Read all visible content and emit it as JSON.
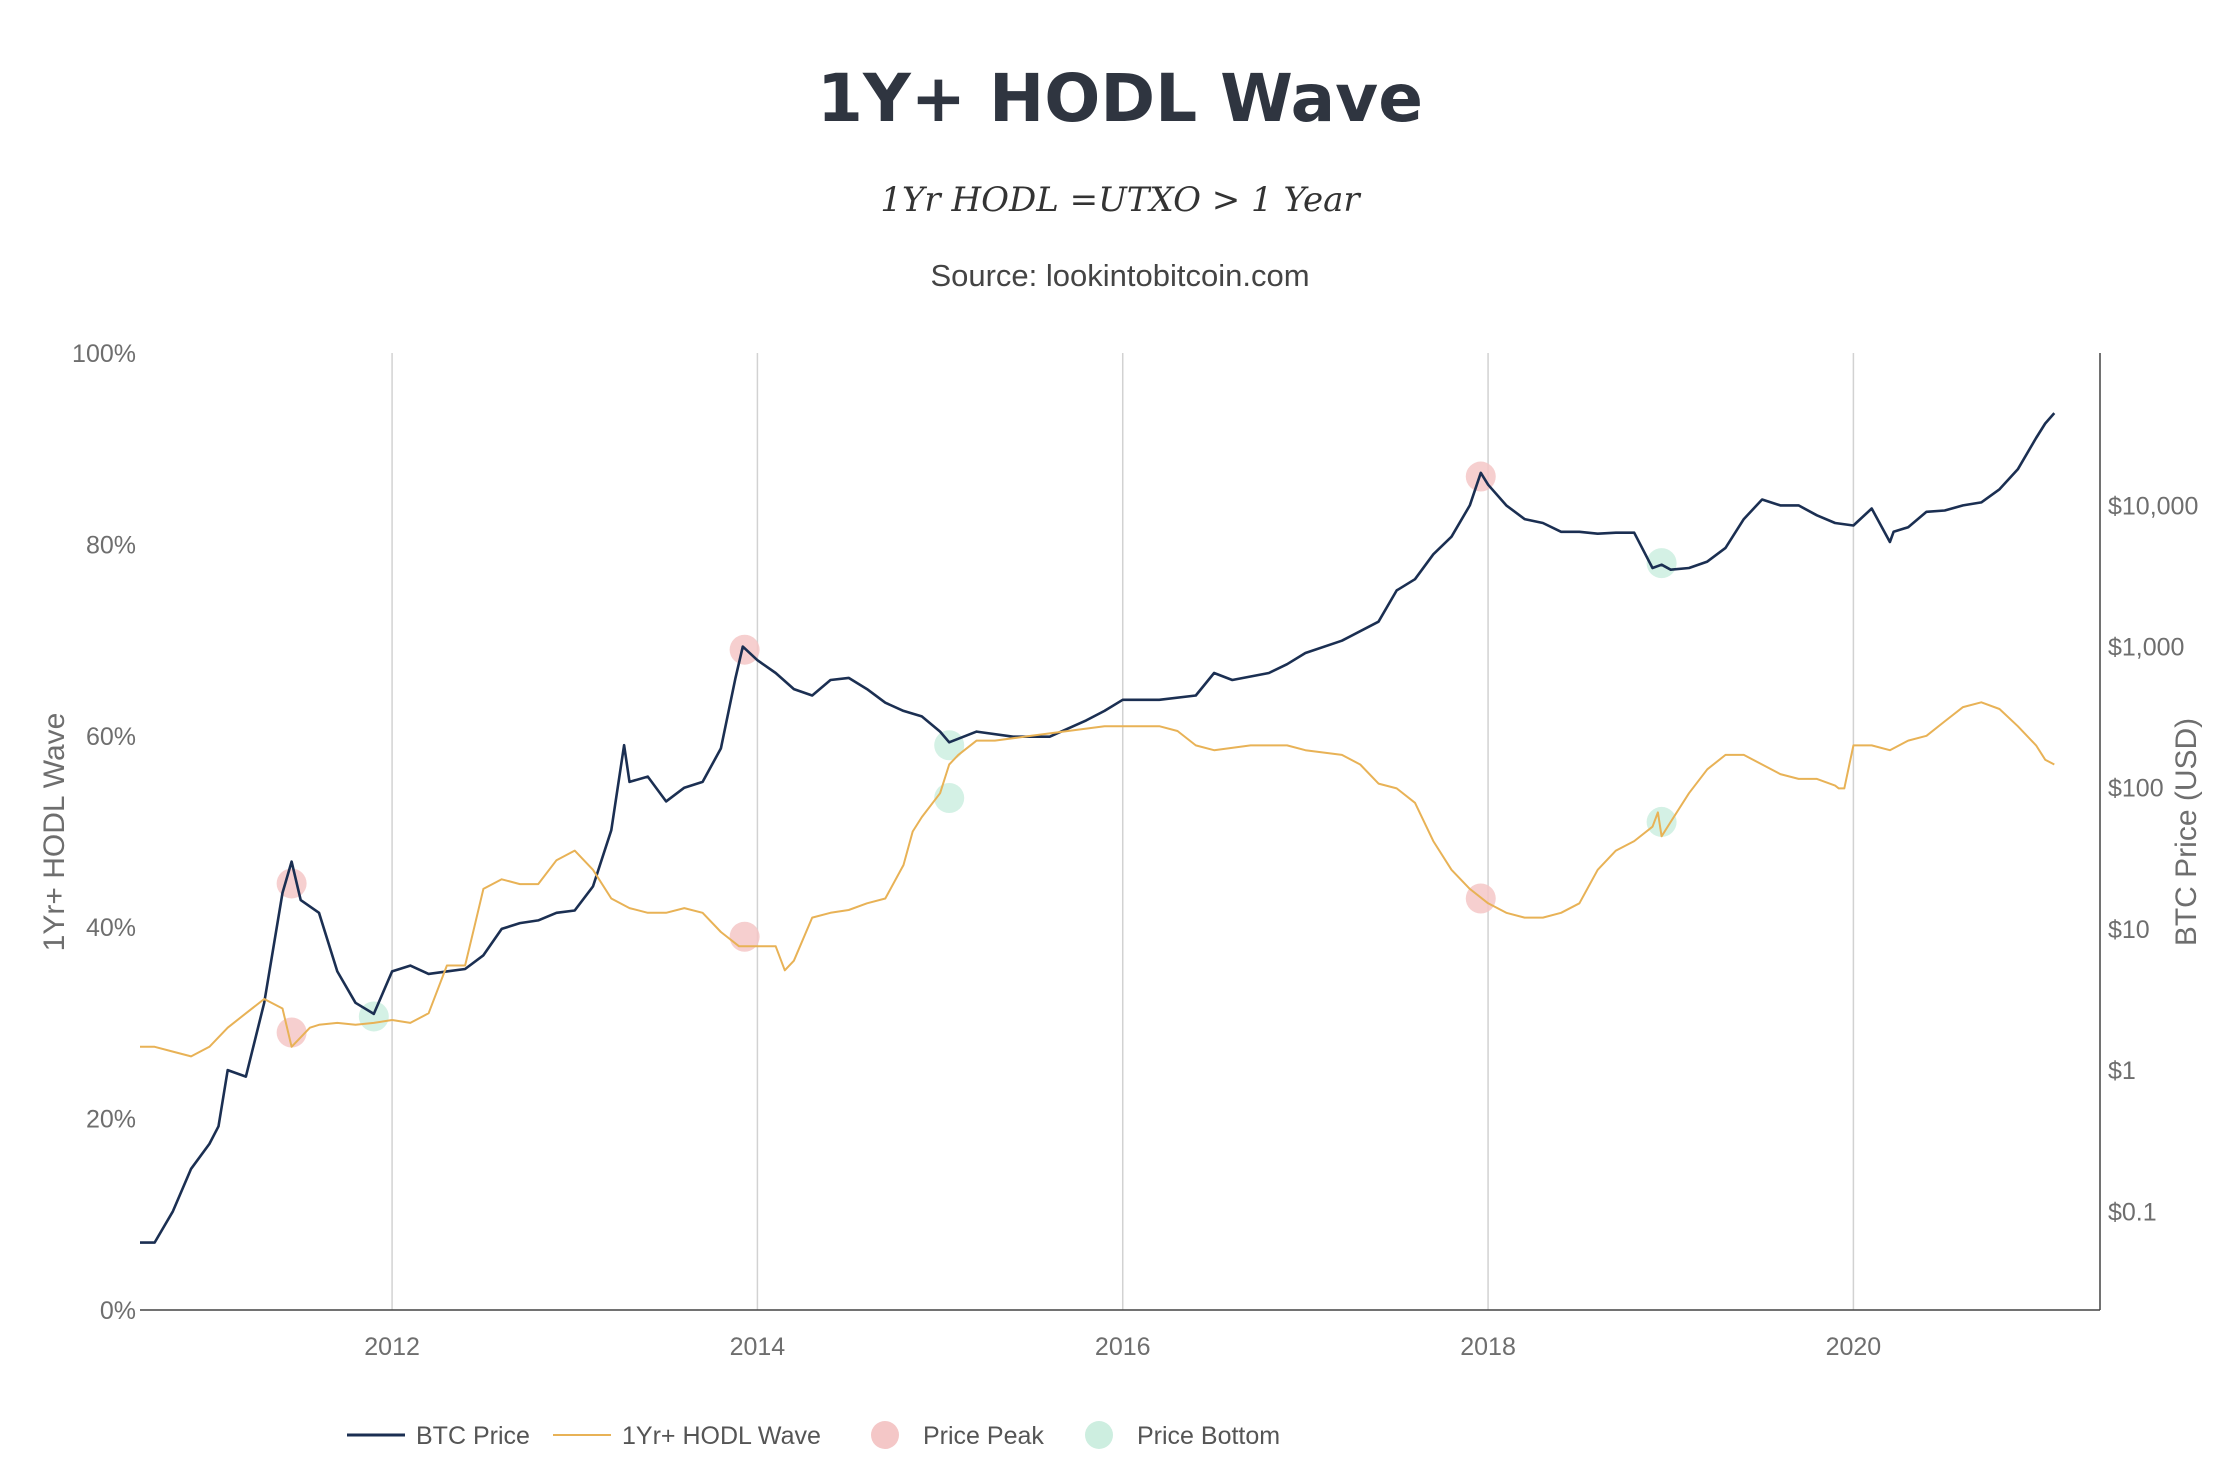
{
  "chart_data": {
    "type": "line",
    "title": "1Y+ HODL Wave",
    "subtitle": "1Yr HODL =UTXO > 1 Year",
    "source": "Source: lookintobitcoin.com",
    "x_ticks": [
      2012,
      2014,
      2016,
      2018,
      2020
    ],
    "x_tick_labels": [
      "2012",
      "2014",
      "2016",
      "2018",
      "2020"
    ],
    "xlim": [
      2010.62,
      2021.35
    ],
    "y_left": {
      "label": "1Yr+ HODL Wave",
      "ticks": [
        0,
        20,
        40,
        60,
        80,
        100
      ],
      "tick_labels": [
        "0%",
        "20%",
        "40%",
        "60%",
        "80%",
        "100%"
      ],
      "range": [
        0,
        100
      ]
    },
    "y_right": {
      "label": "BTC Price (USD)",
      "scale": "log",
      "ticks": [
        0.1,
        1,
        10,
        100,
        1000,
        10000
      ],
      "tick_labels": [
        "$0.1",
        "$1",
        "$10",
        "$100",
        "$1,000",
        "$10,000"
      ],
      "range": [
        0.02,
        120000
      ]
    },
    "series": [
      {
        "name": "BTC Price",
        "axis": "right",
        "color": "#1b2f52",
        "x": [
          2010.62,
          2010.7,
          2010.8,
          2010.9,
          2011.0,
          2011.05,
          2011.1,
          2011.2,
          2011.3,
          2011.4,
          2011.45,
          2011.5,
          2011.6,
          2011.7,
          2011.8,
          2011.9,
          2012.0,
          2012.1,
          2012.2,
          2012.3,
          2012.4,
          2012.5,
          2012.6,
          2012.7,
          2012.8,
          2012.9,
          2013.0,
          2013.1,
          2013.2,
          2013.27,
          2013.3,
          2013.4,
          2013.5,
          2013.6,
          2013.7,
          2013.8,
          2013.88,
          2013.92,
          2014.0,
          2014.1,
          2014.2,
          2014.3,
          2014.4,
          2014.5,
          2014.6,
          2014.7,
          2014.8,
          2014.9,
          2015.0,
          2015.05,
          2015.2,
          2015.4,
          2015.6,
          2015.8,
          2015.9,
          2016.0,
          2016.2,
          2016.4,
          2016.5,
          2016.6,
          2016.8,
          2016.9,
          2017.0,
          2017.2,
          2017.4,
          2017.5,
          2017.6,
          2017.7,
          2017.8,
          2017.9,
          2017.96,
          2018.0,
          2018.1,
          2018.2,
          2018.3,
          2018.4,
          2018.5,
          2018.6,
          2018.7,
          2018.8,
          2018.9,
          2018.95,
          2019.0,
          2019.1,
          2019.2,
          2019.3,
          2019.4,
          2019.5,
          2019.6,
          2019.7,
          2019.8,
          2019.9,
          2020.0,
          2020.1,
          2020.2,
          2020.22,
          2020.3,
          2020.4,
          2020.5,
          2020.6,
          2020.7,
          2020.8,
          2020.9,
          2021.0,
          2021.05,
          2021.1
        ],
        "values": [
          0.06,
          0.06,
          0.1,
          0.2,
          0.3,
          0.4,
          1.0,
          0.9,
          3.0,
          18.0,
          30.0,
          16.0,
          13.0,
          5.0,
          3.0,
          2.5,
          5.0,
          5.5,
          4.8,
          5.0,
          5.2,
          6.5,
          10.0,
          11.0,
          11.5,
          13.0,
          13.5,
          20.0,
          50.0,
          200.0,
          110.0,
          120.0,
          80.0,
          100.0,
          110.0,
          190.0,
          600.0,
          1000.0,
          800.0,
          650.0,
          500.0,
          450.0,
          580.0,
          600.0,
          500.0,
          400.0,
          350.0,
          320.0,
          250.0,
          210.0,
          250.0,
          230.0,
          230.0,
          300.0,
          350.0,
          420.0,
          420.0,
          450.0,
          650.0,
          580.0,
          650.0,
          750.0,
          900.0,
          1100.0,
          1500.0,
          2500.0,
          3000.0,
          4500.0,
          6000.0,
          10000.0,
          17000.0,
          14000.0,
          10000.0,
          8000.0,
          7500.0,
          6500.0,
          6500.0,
          6300.0,
          6400.0,
          6400.0,
          3600.0,
          3800.0,
          3500.0,
          3600.0,
          4000.0,
          5000.0,
          8000.0,
          11000.0,
          10000.0,
          10000.0,
          8500.0,
          7500.0,
          7200.0,
          9500.0,
          5500.0,
          6500.0,
          7000.0,
          9000.0,
          9200.0,
          10000.0,
          10500.0,
          13000.0,
          18000.0,
          30000.0,
          38000.0,
          45000.0
        ]
      },
      {
        "name": "1Yr+ HODL Wave",
        "axis": "left",
        "color": "#e8b256",
        "x": [
          2010.62,
          2010.7,
          2010.8,
          2010.9,
          2011.0,
          2011.1,
          2011.2,
          2011.3,
          2011.4,
          2011.45,
          2011.5,
          2011.55,
          2011.6,
          2011.7,
          2011.8,
          2011.9,
          2012.0,
          2012.1,
          2012.2,
          2012.3,
          2012.4,
          2012.45,
          2012.5,
          2012.6,
          2012.7,
          2012.8,
          2012.9,
          2013.0,
          2013.1,
          2013.2,
          2013.3,
          2013.4,
          2013.5,
          2013.6,
          2013.7,
          2013.8,
          2013.9,
          2013.95,
          2014.0,
          2014.1,
          2014.15,
          2014.2,
          2014.3,
          2014.4,
          2014.5,
          2014.6,
          2014.7,
          2014.8,
          2014.85,
          2014.9,
          2015.0,
          2015.05,
          2015.1,
          2015.2,
          2015.3,
          2015.5,
          2015.7,
          2015.9,
          2016.0,
          2016.2,
          2016.3,
          2016.4,
          2016.5,
          2016.7,
          2016.9,
          2017.0,
          2017.2,
          2017.3,
          2017.4,
          2017.5,
          2017.6,
          2017.7,
          2017.8,
          2017.9,
          2018.0,
          2018.1,
          2018.2,
          2018.3,
          2018.4,
          2018.5,
          2018.6,
          2018.7,
          2018.8,
          2018.9,
          2018.93,
          2018.95,
          2019.0,
          2019.1,
          2019.2,
          2019.3,
          2019.4,
          2019.5,
          2019.6,
          2019.7,
          2019.8,
          2019.9,
          2019.92,
          2019.95,
          2020.0,
          2020.1,
          2020.2,
          2020.3,
          2020.4,
          2020.5,
          2020.6,
          2020.7,
          2020.8,
          2020.9,
          2021.0,
          2021.05,
          2021.1
        ],
        "values": [
          27.5,
          27.5,
          27.0,
          26.5,
          27.5,
          29.5,
          31.0,
          32.5,
          31.5,
          27.5,
          28.5,
          29.5,
          29.8,
          30.0,
          29.8,
          30.0,
          30.3,
          30.0,
          31.0,
          36.0,
          36.0,
          40.0,
          44.0,
          45.0,
          44.5,
          44.5,
          47.0,
          48.0,
          46.0,
          43.0,
          42.0,
          41.5,
          41.5,
          42.0,
          41.5,
          39.5,
          38.0,
          38.0,
          38.0,
          38.0,
          35.5,
          36.5,
          41.0,
          41.5,
          41.8,
          42.5,
          43.0,
          46.5,
          50.0,
          51.5,
          54.0,
          57.0,
          58.0,
          59.5,
          59.5,
          60.0,
          60.5,
          61.0,
          61.0,
          61.0,
          60.5,
          59.0,
          58.5,
          59.0,
          59.0,
          58.5,
          58.0,
          57.0,
          55.0,
          54.5,
          53.0,
          49.0,
          46.0,
          44.0,
          42.5,
          41.5,
          41.0,
          41.0,
          41.5,
          42.5,
          46.0,
          48.0,
          49.0,
          50.5,
          52.0,
          49.5,
          51.0,
          54.0,
          56.5,
          58.0,
          58.0,
          57.0,
          56.0,
          55.5,
          55.5,
          54.8,
          54.5,
          54.5,
          59.0,
          59.0,
          58.5,
          59.5,
          60.0,
          61.5,
          63.0,
          63.5,
          62.8,
          61.0,
          59.0,
          57.5,
          57.0
        ]
      },
      {
        "name": "Price Peak",
        "type": "markers",
        "color": "#f4c7c7",
        "points": [
          {
            "x": 2011.45,
            "axis": "right",
            "value": 21.0
          },
          {
            "x": 2011.45,
            "axis": "left",
            "value": 29.0
          },
          {
            "x": 2013.93,
            "axis": "right",
            "value": 950.0
          },
          {
            "x": 2013.93,
            "axis": "left",
            "value": 39.0
          },
          {
            "x": 2017.96,
            "axis": "right",
            "value": 16000.0
          },
          {
            "x": 2017.96,
            "axis": "left",
            "value": 43.0
          }
        ]
      },
      {
        "name": "Price Bottom",
        "type": "markers",
        "color": "#cdeee0",
        "points": [
          {
            "x": 2011.9,
            "axis": "right",
            "value": 2.4
          },
          {
            "x": 2015.05,
            "axis": "right",
            "value": 200.0
          },
          {
            "x": 2015.05,
            "axis": "left",
            "value": 53.5
          },
          {
            "x": 2018.95,
            "axis": "right",
            "value": 3900.0
          },
          {
            "x": 2018.95,
            "axis": "left",
            "value": 51.0
          }
        ]
      }
    ],
    "legend": {
      "placement": "bottom-center",
      "items": [
        "BTC Price",
        "1Yr+ HODL Wave",
        "Price Peak",
        "Price Bottom"
      ]
    }
  }
}
